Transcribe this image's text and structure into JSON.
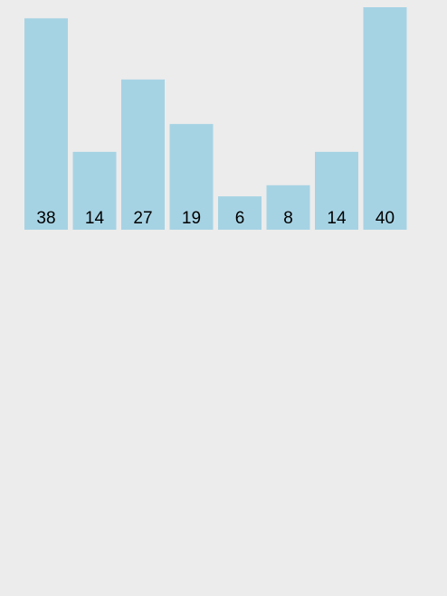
{
  "chart_data": {
    "type": "bar",
    "values": [
      38,
      14,
      27,
      19,
      6,
      8,
      14,
      40
    ],
    "data_labels": [
      "38",
      "14",
      "27",
      "19",
      "6",
      "8",
      "14",
      "40"
    ],
    "ylim": [
      0,
      40
    ],
    "grid": false,
    "axes_visible": false
  },
  "colors": {
    "background": "#ececec",
    "bar_fill": "#a6d3e4",
    "label_text": "#000000"
  }
}
